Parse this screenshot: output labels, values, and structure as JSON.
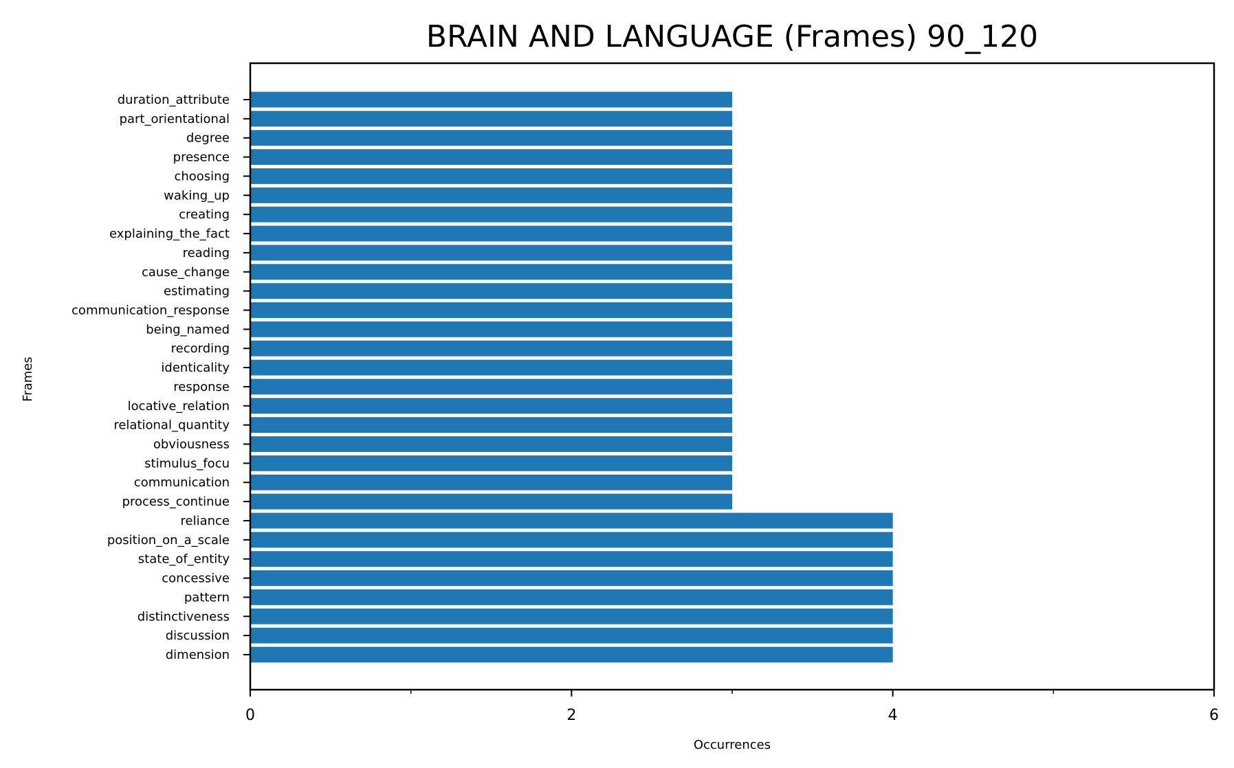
{
  "chart_data": {
    "type": "bar",
    "orientation": "horizontal",
    "title": "BRAIN AND LANGUAGE (Frames) 90_120",
    "xlabel": "Occurrences",
    "ylabel": "Frames",
    "xlim": [
      0,
      6
    ],
    "xticks": [
      0,
      2,
      4,
      6
    ],
    "minor_xticks": [
      1,
      3,
      5
    ],
    "bar_color": "#1f77b4",
    "grid": false,
    "categories": [
      "duration_attribute",
      "part_orientational",
      "degree",
      "presence",
      "choosing",
      "waking_up",
      "creating",
      "explaining_the_fact",
      "reading",
      "cause_change",
      "estimating",
      "communication_response",
      "being_named",
      "recording",
      "identicality",
      "response",
      "locative_relation",
      "relational_quantity",
      "obviousness",
      "stimulus_focu",
      "communication",
      "process_continue",
      "reliance",
      "position_on_a_scale",
      "state_of_entity",
      "concessive",
      "pattern",
      "distinctiveness",
      "discussion",
      "dimension"
    ],
    "values": [
      3,
      3,
      3,
      3,
      3,
      3,
      3,
      3,
      3,
      3,
      3,
      3,
      3,
      3,
      3,
      3,
      3,
      3,
      3,
      3,
      3,
      3,
      4,
      4,
      4,
      4,
      4,
      4,
      4,
      4
    ]
  }
}
